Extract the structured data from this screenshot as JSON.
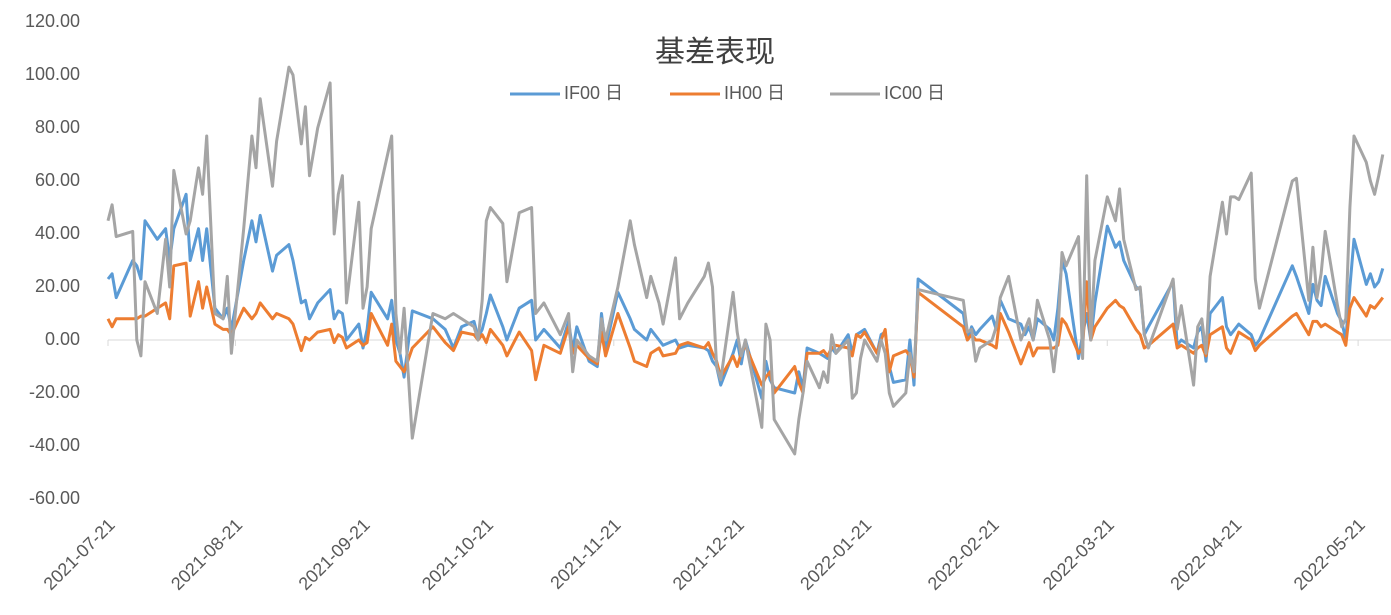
{
  "chart_data": {
    "type": "line",
    "title": "基差表现",
    "x": [
      "2021-07-21",
      "2021-07-22",
      "2021-07-23",
      "2021-07-27",
      "2021-07-28",
      "2021-07-29",
      "2021-07-30",
      "2021-08-02",
      "2021-08-04",
      "2021-08-05",
      "2021-08-06",
      "2021-08-09",
      "2021-08-10",
      "2021-08-12",
      "2021-08-13",
      "2021-08-14",
      "2021-08-16",
      "2021-08-18",
      "2021-08-19",
      "2021-08-20",
      "2021-08-23",
      "2021-08-25",
      "2021-08-26",
      "2021-08-27",
      "2021-08-30",
      "2021-08-31",
      "2021-09-03",
      "2021-09-04",
      "2021-09-06",
      "2021-09-07",
      "2021-09-08",
      "2021-09-10",
      "2021-09-13",
      "2021-09-14",
      "2021-09-15",
      "2021-09-16",
      "2021-09-17",
      "2021-09-20",
      "2021-09-21",
      "2021-09-22",
      "2021-09-23",
      "2021-09-27",
      "2021-09-28",
      "2021-09-29",
      "2021-09-30",
      "2021-10-01",
      "2021-10-03",
      "2021-10-08",
      "2021-10-11",
      "2021-10-13",
      "2021-10-15",
      "2021-10-18",
      "2021-10-19",
      "2021-10-20",
      "2021-10-21",
      "2021-10-22",
      "2021-10-25",
      "2021-10-26",
      "2021-10-29",
      "2021-11-01",
      "2021-11-02",
      "2021-11-04",
      "2021-11-08",
      "2021-11-10",
      "2021-11-11",
      "2021-11-12",
      "2021-11-15",
      "2021-11-17",
      "2021-11-18",
      "2021-11-19",
      "2021-11-22",
      "2021-11-25",
      "2021-11-26",
      "2021-11-29",
      "2021-11-30",
      "2021-12-02",
      "2021-12-03",
      "2021-12-06",
      "2021-12-07",
      "2021-12-09",
      "2021-12-13",
      "2021-12-14",
      "2021-12-15",
      "2021-12-16",
      "2021-12-17",
      "2021-12-20",
      "2021-12-21",
      "2021-12-22",
      "2021-12-23",
      "2021-12-27",
      "2021-12-28",
      "2021-12-29",
      "2021-12-30",
      "2022-01-04",
      "2022-01-05",
      "2022-01-06",
      "2022-01-07",
      "2022-01-10",
      "2022-01-11",
      "2022-01-12",
      "2022-01-13",
      "2022-01-14",
      "2022-01-17",
      "2022-01-18",
      "2022-01-19",
      "2022-01-20",
      "2022-01-21",
      "2022-01-24",
      "2022-01-25",
      "2022-01-26",
      "2022-01-27",
      "2022-01-28",
      "2022-01-31",
      "2022-02-01",
      "2022-02-02",
      "2022-02-03",
      "2022-02-14",
      "2022-02-15",
      "2022-02-16",
      "2022-02-17",
      "2022-02-18",
      "2022-02-21",
      "2022-02-22",
      "2022-02-23",
      "2022-02-25",
      "2022-02-28",
      "2022-03-01",
      "2022-03-02",
      "2022-03-03",
      "2022-03-04",
      "2022-03-07",
      "2022-03-08",
      "2022-03-09",
      "2022-03-10",
      "2022-03-11",
      "2022-03-14",
      "2022-03-15",
      "2022-03-16",
      "2022-03-17",
      "2022-03-18",
      "2022-03-21",
      "2022-03-23",
      "2022-03-24",
      "2022-03-25",
      "2022-03-28",
      "2022-03-29",
      "2022-03-30",
      "2022-03-31",
      "2022-04-06",
      "2022-04-07",
      "2022-04-08",
      "2022-04-11",
      "2022-04-12",
      "2022-04-13",
      "2022-04-14",
      "2022-04-15",
      "2022-04-18",
      "2022-04-19",
      "2022-04-20",
      "2022-04-21",
      "2022-04-22",
      "2022-04-25",
      "2022-04-26",
      "2022-04-27",
      "2022-05-05",
      "2022-05-06",
      "2022-05-09",
      "2022-05-10",
      "2022-05-11",
      "2022-05-12",
      "2022-05-13",
      "2022-05-16",
      "2022-05-17",
      "2022-05-18",
      "2022-05-19",
      "2022-05-20",
      "2022-05-23",
      "2022-05-24",
      "2022-05-25",
      "2022-05-26",
      "2022-05-27"
    ],
    "series": [
      {
        "name": "IF00 日",
        "color": "#5b9bd5",
        "values": [
          23,
          25,
          16,
          30,
          28,
          23,
          45,
          38,
          42,
          30,
          42,
          55,
          30,
          42,
          30,
          42,
          12,
          8,
          12,
          4,
          30,
          45,
          37,
          47,
          26,
          32,
          36,
          30,
          14,
          15,
          8,
          14,
          19,
          8,
          11,
          10,
          0,
          6,
          -3,
          4,
          18,
          8,
          15,
          0,
          -5,
          -14,
          11,
          8,
          4,
          -3,
          5,
          7,
          1,
          4,
          10,
          17,
          5,
          0,
          12,
          15,
          0,
          4,
          -3,
          7,
          -4,
          5,
          -8,
          -10,
          10,
          -3,
          18,
          8,
          4,
          0,
          4,
          0,
          -2,
          0,
          -3,
          -2,
          -3,
          -4,
          -8,
          -10,
          -17,
          -5,
          0,
          -9,
          0,
          -22,
          -8,
          -15,
          -18,
          -20,
          -12,
          -18,
          -3,
          -5,
          -6,
          -7,
          -3,
          -5,
          2,
          -5,
          2,
          3,
          4,
          -5,
          2,
          3,
          -10,
          -16,
          -15,
          0,
          -17,
          23,
          10,
          0,
          5,
          2,
          4,
          9,
          4,
          15,
          8,
          6,
          2,
          5,
          0,
          8,
          4,
          0,
          12,
          30,
          25,
          -7,
          2,
          10,
          0,
          14,
          43,
          35,
          37,
          30,
          20,
          19,
          2,
          5,
          22,
          -2,
          0,
          -3,
          3,
          5,
          -8,
          10,
          16,
          5,
          2,
          4,
          6,
          2,
          -2,
          0,
          28,
          24,
          10,
          21,
          15,
          13,
          24,
          10,
          7,
          0,
          20,
          38,
          21,
          25,
          20,
          22,
          27
        ]
      },
      {
        "name": "IH00 日",
        "color": "#ed7d31",
        "values": [
          8,
          5,
          8,
          8,
          8,
          9,
          9,
          12,
          14,
          8,
          28,
          29,
          9,
          22,
          12,
          20,
          6,
          4,
          4,
          2,
          12,
          8,
          10,
          14,
          8,
          10,
          8,
          6,
          -4,
          1,
          0,
          3,
          4,
          -1,
          2,
          1,
          -3,
          0,
          -2,
          -1,
          10,
          -2,
          6,
          -8,
          -10,
          -12,
          -3,
          5,
          -1,
          -4,
          3,
          2,
          0,
          2,
          -1,
          4,
          -2,
          -6,
          3,
          -4,
          -15,
          -2,
          -5,
          5,
          -5,
          -2,
          -7,
          -9,
          3,
          -6,
          10,
          -3,
          -8,
          -10,
          -5,
          -3,
          -6,
          -5,
          -2,
          -1,
          -3,
          -1,
          -5,
          -8,
          -14,
          -6,
          -10,
          -5,
          -2,
          -17,
          -14,
          -12,
          -20,
          -10,
          -16,
          -20,
          -5,
          -5,
          -4,
          -6,
          -3,
          -2,
          -3,
          -6,
          2,
          1,
          3,
          -5,
          0,
          4,
          -12,
          -6,
          -4,
          -6,
          -14,
          18,
          5,
          0,
          2,
          0,
          0,
          -2,
          -3,
          10,
          3,
          -9,
          -5,
          -1,
          -6,
          -3,
          -3,
          -3,
          -2,
          8,
          6,
          -5,
          -3,
          22,
          0,
          5,
          12,
          15,
          13,
          12,
          4,
          2,
          -3,
          -2,
          6,
          -3,
          -2,
          -5,
          -3,
          -2,
          -6,
          2,
          5,
          -3,
          -5,
          -1,
          3,
          0,
          -4,
          -2,
          9,
          10,
          2,
          7,
          7,
          5,
          6,
          3,
          2,
          -2,
          12,
          16,
          9,
          13,
          12,
          14,
          16
        ]
      },
      {
        "name": "IC00 日",
        "color": "#a5a5a5",
        "values": [
          45,
          51,
          39,
          41,
          0,
          -6,
          22,
          10,
          38,
          20,
          64,
          40,
          45,
          65,
          55,
          77,
          10,
          8,
          24,
          -5,
          42,
          77,
          65,
          91,
          58,
          75,
          103,
          100,
          74,
          88,
          62,
          80,
          97,
          40,
          55,
          62,
          14,
          52,
          12,
          20,
          42,
          70,
          77,
          10,
          -5,
          12,
          -37,
          10,
          8,
          10,
          8,
          5,
          0,
          15,
          45,
          50,
          44,
          22,
          48,
          50,
          10,
          14,
          2,
          10,
          -12,
          0,
          -6,
          -8,
          8,
          0,
          20,
          45,
          36,
          16,
          24,
          14,
          6,
          31,
          8,
          14,
          24,
          29,
          20,
          -10,
          -15,
          18,
          3,
          -6,
          0,
          -33,
          6,
          0,
          -30,
          -43,
          -30,
          -20,
          -8,
          -18,
          -12,
          -16,
          2,
          -5,
          0,
          -22,
          -20,
          -7,
          0,
          -8,
          0,
          -5,
          -20,
          -25,
          -20,
          -5,
          -12,
          19,
          15,
          3,
          4,
          -8,
          -3,
          0,
          5,
          16,
          24,
          0,
          4,
          8,
          0,
          15,
          0,
          -12,
          2,
          33,
          28,
          39,
          -7,
          62,
          0,
          30,
          54,
          45,
          57,
          38,
          19,
          20,
          2,
          -3,
          23,
          4,
          13,
          -17,
          5,
          8,
          -5,
          24,
          52,
          40,
          54,
          54,
          53,
          63,
          23,
          12,
          60,
          61,
          15,
          35,
          16,
          25,
          41,
          13,
          5,
          8,
          50,
          77,
          67,
          60,
          55,
          62,
          70
        ]
      }
    ],
    "xlim": [
      "2021-07-21",
      "2022-05-29"
    ],
    "xticks": [
      "2021-07-21",
      "2021-08-21",
      "2021-09-21",
      "2021-10-21",
      "2021-11-21",
      "2021-12-21",
      "2022-01-21",
      "2022-02-21",
      "2022-03-21",
      "2022-04-21",
      "2022-05-21"
    ],
    "ylim": [
      -60,
      120
    ],
    "yticks": [
      {
        "value": -60,
        "label": "-60.00"
      },
      {
        "value": -40,
        "label": "-40.00"
      },
      {
        "value": -20,
        "label": "-20.00"
      },
      {
        "value": 0,
        "label": "0.00"
      },
      {
        "value": 20,
        "label": "20.00"
      },
      {
        "value": 40,
        "label": "40.00"
      },
      {
        "value": 60,
        "label": "60.00"
      },
      {
        "value": 80,
        "label": "80.00"
      },
      {
        "value": 100,
        "label": "100.00"
      },
      {
        "value": 120,
        "label": "120.00"
      }
    ],
    "grid": false,
    "legend": "top"
  }
}
